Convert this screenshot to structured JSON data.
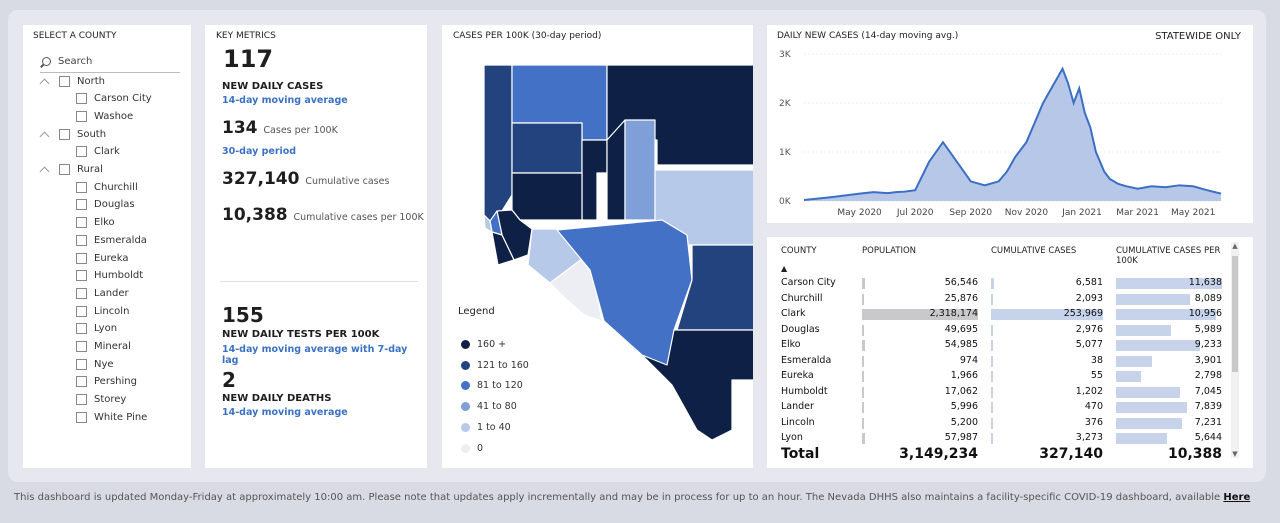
{
  "county_panel": {
    "title": "SELECT A COUNTY",
    "search_placeholder": "Search",
    "items": [
      {
        "label": "North",
        "group": true
      },
      {
        "label": "Carson City",
        "group": false
      },
      {
        "label": "Washoe",
        "group": false
      },
      {
        "label": "South",
        "group": true
      },
      {
        "label": "Clark",
        "group": false
      },
      {
        "label": "Rural",
        "group": true
      },
      {
        "label": "Churchill",
        "group": false
      },
      {
        "label": "Douglas",
        "group": false
      },
      {
        "label": "Elko",
        "group": false
      },
      {
        "label": "Esmeralda",
        "group": false
      },
      {
        "label": "Eureka",
        "group": false
      },
      {
        "label": "Humboldt",
        "group": false
      },
      {
        "label": "Lander",
        "group": false
      },
      {
        "label": "Lincoln",
        "group": false
      },
      {
        "label": "Lyon",
        "group": false
      },
      {
        "label": "Mineral",
        "group": false
      },
      {
        "label": "Nye",
        "group": false
      },
      {
        "label": "Pershing",
        "group": false
      },
      {
        "label": "Storey",
        "group": false
      },
      {
        "label": "White Pine",
        "group": false
      }
    ]
  },
  "metrics": {
    "title": "KEY METRICS",
    "daily_cases": "117",
    "daily_cases_label": "NEW DAILY CASES",
    "daily_cases_sub": "14-day moving average",
    "per100k": "134",
    "per100k_label": "Cases per 100K",
    "per100k_sub": "30-day period",
    "cumulative": "327,140",
    "cumulative_label": "Cumulative cases",
    "cum_per100k": "10,388",
    "cum_per100k_label": "Cumulative cases per 100K",
    "tests": "155",
    "tests_label": "NEW DAILY TESTS PER 100K",
    "tests_sub": "14-day moving average with 7-day lag",
    "deaths": "2",
    "deaths_label": "NEW DAILY DEATHS",
    "deaths_sub": "14-day moving average"
  },
  "map": {
    "title": "CASES PER 100K (30-day period)",
    "legend_title": "Legend",
    "legend": [
      {
        "label": "160 +",
        "color": "#0e2045"
      },
      {
        "label": "121 to 160",
        "color": "#23437f"
      },
      {
        "label": "81 to 120",
        "color": "#4271c6"
      },
      {
        "label": "41 to 80",
        "color": "#7e9fd8"
      },
      {
        "label": "1 to 40",
        "color": "#b6c9e8"
      },
      {
        "label": "0",
        "color": "#eceef4"
      }
    ]
  },
  "daily_chart": {
    "title": "DAILY NEW CASES (14-day moving avg.)",
    "badge": "STATEWIDE ONLY"
  },
  "chart_data": {
    "type": "area",
    "title": "DAILY NEW CASES (14-day moving avg.)",
    "x_ticks": [
      "May 2020",
      "Jul 2020",
      "Sep 2020",
      "Nov 2020",
      "Jan 2021",
      "Mar 2021",
      "May 2021"
    ],
    "y_ticks": [
      "0K",
      "1K",
      "2K",
      "3K"
    ],
    "ylim": [
      0,
      3000
    ],
    "x_months": [
      0,
      1,
      2,
      2.5,
      3,
      3.3,
      3.6,
      4,
      4.5,
      5,
      5.5,
      6,
      6.5,
      7,
      7.3,
      7.6,
      8,
      8.3,
      8.6,
      9,
      9.3,
      9.5,
      9.7,
      9.9,
      10.1,
      10.3,
      10.5,
      10.8,
      11,
      11.3,
      11.6,
      12,
      12.5,
      13,
      13.5,
      14,
      14.5,
      15
    ],
    "x_origin": "2020-03",
    "values": [
      20,
      80,
      150,
      180,
      160,
      180,
      190,
      220,
      800,
      1200,
      800,
      400,
      320,
      400,
      600,
      900,
      1200,
      1600,
      2000,
      2400,
      2700,
      2400,
      2000,
      2300,
      1800,
      1500,
      1000,
      600,
      450,
      350,
      300,
      250,
      300,
      280,
      320,
      300,
      220,
      150
    ],
    "grid": true
  },
  "table": {
    "headers": {
      "county": "COUNTY",
      "population": "POPULATION",
      "cumulative": "CUMULATIVE CASES",
      "cum_per100k": "CUMULATIVE CASES PER 100K"
    },
    "rows": [
      {
        "county": "Carson City",
        "population": "56,546",
        "cumulative": "6,581",
        "per100k": "11,638",
        "pop_v": 56546,
        "cum_v": 6581,
        "per_v": 11638
      },
      {
        "county": "Churchill",
        "population": "25,876",
        "cumulative": "2,093",
        "per100k": "8,089",
        "pop_v": 25876,
        "cum_v": 2093,
        "per_v": 8089
      },
      {
        "county": "Clark",
        "population": "2,318,174",
        "cumulative": "253,969",
        "per100k": "10,956",
        "pop_v": 2318174,
        "cum_v": 253969,
        "per_v": 10956
      },
      {
        "county": "Douglas",
        "population": "49,695",
        "cumulative": "2,976",
        "per100k": "5,989",
        "pop_v": 49695,
        "cum_v": 2976,
        "per_v": 5989
      },
      {
        "county": "Elko",
        "population": "54,985",
        "cumulative": "5,077",
        "per100k": "9,233",
        "pop_v": 54985,
        "cum_v": 5077,
        "per_v": 9233
      },
      {
        "county": "Esmeralda",
        "population": "974",
        "cumulative": "38",
        "per100k": "3,901",
        "pop_v": 974,
        "cum_v": 38,
        "per_v": 3901
      },
      {
        "county": "Eureka",
        "population": "1,966",
        "cumulative": "55",
        "per100k": "2,798",
        "pop_v": 1966,
        "cum_v": 55,
        "per_v": 2798
      },
      {
        "county": "Humboldt",
        "population": "17,062",
        "cumulative": "1,202",
        "per100k": "7,045",
        "pop_v": 17062,
        "cum_v": 1202,
        "per_v": 7045
      },
      {
        "county": "Lander",
        "population": "5,996",
        "cumulative": "470",
        "per100k": "7,839",
        "pop_v": 5996,
        "cum_v": 470,
        "per_v": 7839
      },
      {
        "county": "Lincoln",
        "population": "5,200",
        "cumulative": "376",
        "per100k": "7,231",
        "pop_v": 5200,
        "cum_v": 376,
        "per_v": 7231
      },
      {
        "county": "Lyon",
        "population": "57,987",
        "cumulative": "3,273",
        "per100k": "5,644",
        "pop_v": 57987,
        "cum_v": 3273,
        "per_v": 5644
      }
    ],
    "total": {
      "label": "Total",
      "population": "3,149,234",
      "cumulative": "327,140",
      "per100k": "10,388"
    },
    "sort_indicator": "▲"
  },
  "footer": {
    "text": "This dashboard is updated Monday-Friday at approximately 10:00 am. Please note that updates apply incrementally and may be in process for up to an hour.  The Nevada DHHS also maintains a facility-specific COVID-19 dashboard, available ",
    "link": "Here"
  }
}
